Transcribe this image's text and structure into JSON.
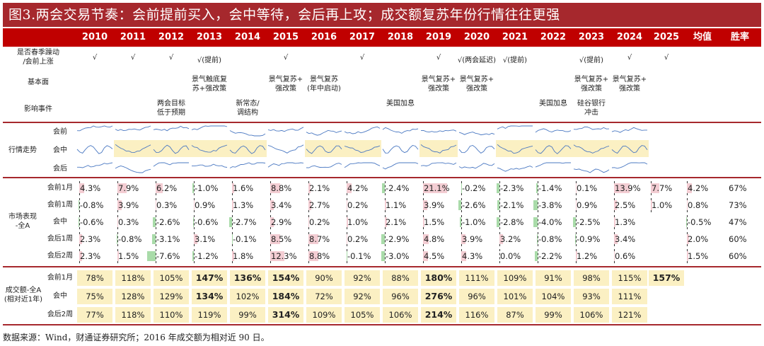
{
  "title": "图3.两会交易节奏：会前提前买入，会中等待，会后再上攻；成交额复苏年份行情往往更强",
  "headers": [
    "2010",
    "2011",
    "2012",
    "2013",
    "2014",
    "2015",
    "2016",
    "2017",
    "2018",
    "2019",
    "2020",
    "2021",
    "2022",
    "2023",
    "2024",
    "2025",
    "均值",
    "胜率"
  ],
  "row_labels": {
    "spring": "是否春季躁动\n/会前上涨",
    "fundamental": "基本面",
    "event": "影响事件",
    "trend": "行情走势",
    "trend_pre": "会前",
    "trend_mid": "会中",
    "trend_post": "会后",
    "market": "市场表现\n-全A",
    "m_rows": [
      "会前1月",
      "会前1周",
      "会中",
      "会后1周",
      "会后2周"
    ],
    "volume": "成交额-全A\n(相对近1年)",
    "v_rows": [
      "会前1月",
      "会中",
      "会后2周"
    ]
  },
  "spring": [
    "√",
    "√",
    "√",
    "√(提前)",
    "",
    "√",
    "",
    "√",
    "",
    "√",
    "√(两会延迟)",
    "√(提前)",
    "",
    "√(提前)",
    "√",
    "√"
  ],
  "fundamental": [
    "",
    "",
    "",
    "景气触底复\n苏+强改策",
    "",
    "景气复苏+\n强改策",
    "景气复苏\n(年中启动)",
    "",
    "",
    "景气复苏+\n强改策",
    "景气复苏+\n强改策",
    "",
    "",
    "景气复苏+\n强改策",
    "景气复苏+\n强改策",
    ""
  ],
  "event": [
    "",
    "",
    "两会目标\n低于预期",
    "",
    "新常态/\n调结构",
    "",
    "",
    "",
    "美国加息",
    "",
    "",
    "",
    "美国加息",
    "硅谷银行\n冲击",
    "",
    ""
  ],
  "mid_highlight": [
    false,
    true,
    true,
    true,
    true,
    false,
    true,
    true,
    false,
    true,
    false,
    true,
    true,
    true,
    true,
    false
  ],
  "market": [
    [
      "4.3%",
      "7.9%",
      "6.2%",
      "-1.0%",
      "1.6%",
      "8.8%",
      "2.1%",
      "4.2%",
      "-2.4%",
      "21.1%",
      "-0.2%",
      "-2.3%",
      "-1.4%",
      "0.1%",
      "13.9%",
      "7.7%",
      "4.2%",
      "67%"
    ],
    [
      "-0.8%",
      "3.9%",
      "0.3%",
      "0.9%",
      "1.3%",
      "3.4%",
      "2.7%",
      "0.2%",
      "1.1%",
      "3.9%",
      "-2.6%",
      "-2.1%",
      "-3.8%",
      "0.9%",
      "2.5%",
      "1.0%",
      "0.8%",
      "73%"
    ],
    [
      "-0.6%",
      "0.3%",
      "-2.6%",
      "-0.6%",
      "-2.7%",
      "2.9%",
      "0.2%",
      "1.0%",
      "2.1%",
      "1.5%",
      "-1.0%",
      "-2.8%",
      "-4.0%",
      "-2.5%",
      "1.3%",
      "",
      "-0.5%",
      "47%"
    ],
    [
      "2.3%",
      "-0.8%",
      "-3.1%",
      "3.1%",
      "-0.1%",
      "8.5%",
      "8.7%",
      "0.2%",
      "-2.9%",
      "4.8%",
      "3.9%",
      "3.2%",
      "-0.8%",
      "-0.9%",
      "3.4%",
      "",
      "2.0%",
      "60%"
    ],
    [
      "2.3%",
      "1.5%",
      "-7.6%",
      "-1.2%",
      "1.8%",
      "12.3%",
      "8.8%",
      "-0.1%",
      "-3.0%",
      "4.5%",
      "4.3%",
      "0.0%",
      "-2.2%",
      "1.2%",
      "0.6%",
      "",
      "1.5%",
      "60%"
    ]
  ],
  "market_values": [
    [
      4.3,
      7.9,
      6.2,
      -1.0,
      1.6,
      8.8,
      2.1,
      4.2,
      -2.4,
      21.1,
      -0.2,
      -2.3,
      -1.4,
      0.1,
      13.9,
      7.7,
      4.2
    ],
    [
      -0.8,
      3.9,
      0.3,
      0.9,
      1.3,
      3.4,
      2.7,
      0.2,
      1.1,
      3.9,
      -2.6,
      -2.1,
      -3.8,
      0.9,
      2.5,
      1.0,
      0.8
    ],
    [
      -0.6,
      0.3,
      -2.6,
      -0.6,
      -2.7,
      2.9,
      0.2,
      1.0,
      2.1,
      1.5,
      -1.0,
      -2.8,
      -4.0,
      -2.5,
      1.3,
      null,
      -0.5
    ],
    [
      2.3,
      -0.8,
      -3.1,
      3.1,
      -0.1,
      8.5,
      8.7,
      0.2,
      -2.9,
      4.8,
      3.9,
      3.2,
      -0.8,
      -0.9,
      3.4,
      null,
      2.0
    ],
    [
      2.3,
      1.5,
      -7.6,
      -1.2,
      1.8,
      12.3,
      8.8,
      -0.1,
      -3.0,
      4.5,
      4.3,
      0.0,
      -2.2,
      1.2,
      0.6,
      null,
      1.5
    ]
  ],
  "volume": [
    [
      "78%",
      "118%",
      "105%",
      "147%",
      "136%",
      "154%",
      "90%",
      "92%",
      "88%",
      "180%",
      "111%",
      "109%",
      "91%",
      "98%",
      "115%",
      "157%"
    ],
    [
      "75%",
      "128%",
      "129%",
      "134%",
      "102%",
      "184%",
      "72%",
      "92%",
      "96%",
      "276%",
      "96%",
      "101%",
      "104%",
      "93%",
      "111%",
      ""
    ],
    [
      "77%",
      "118%",
      "110%",
      "119%",
      "99%",
      "314%",
      "109%",
      "105%",
      "106%",
      "214%",
      "116%",
      "87%",
      "99%",
      "106%",
      "121%",
      ""
    ]
  ],
  "volume_bold": [
    [
      false,
      false,
      false,
      true,
      true,
      true,
      false,
      false,
      false,
      true,
      false,
      false,
      false,
      false,
      false,
      true
    ],
    [
      false,
      false,
      false,
      true,
      false,
      true,
      false,
      false,
      false,
      true,
      false,
      false,
      false,
      false,
      false,
      false
    ],
    [
      false,
      false,
      false,
      false,
      false,
      true,
      false,
      false,
      false,
      true,
      false,
      false,
      false,
      false,
      false,
      false
    ]
  ],
  "footer": "数据来源：Wind，财通证券研究所；2016 年成交额为相对近 90 日。"
}
